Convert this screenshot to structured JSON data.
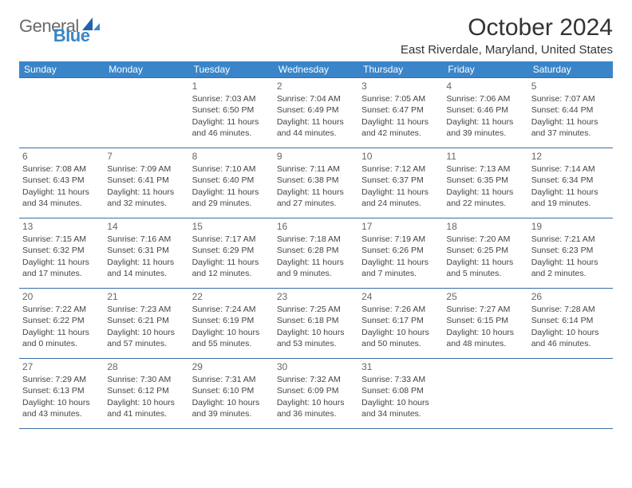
{
  "brand": {
    "general": "General",
    "blue": "Blue"
  },
  "title": "October 2024",
  "location": "East Riverdale, Maryland, United States",
  "colors": {
    "header_bg": "#3a85c9",
    "header_text": "#ffffff",
    "row_border": "#3a6ea5",
    "body_text": "#444444",
    "title_text": "#333333",
    "logo_gray": "#6a6a6a",
    "logo_blue": "#3a85c9"
  },
  "day_headers": [
    "Sunday",
    "Monday",
    "Tuesday",
    "Wednesday",
    "Thursday",
    "Friday",
    "Saturday"
  ],
  "weeks": [
    [
      {
        "day": "",
        "sunrise": "",
        "sunset": "",
        "dl1": "",
        "dl2": ""
      },
      {
        "day": "",
        "sunrise": "",
        "sunset": "",
        "dl1": "",
        "dl2": ""
      },
      {
        "day": "1",
        "sunrise": "Sunrise: 7:03 AM",
        "sunset": "Sunset: 6:50 PM",
        "dl1": "Daylight: 11 hours",
        "dl2": "and 46 minutes."
      },
      {
        "day": "2",
        "sunrise": "Sunrise: 7:04 AM",
        "sunset": "Sunset: 6:49 PM",
        "dl1": "Daylight: 11 hours",
        "dl2": "and 44 minutes."
      },
      {
        "day": "3",
        "sunrise": "Sunrise: 7:05 AM",
        "sunset": "Sunset: 6:47 PM",
        "dl1": "Daylight: 11 hours",
        "dl2": "and 42 minutes."
      },
      {
        "day": "4",
        "sunrise": "Sunrise: 7:06 AM",
        "sunset": "Sunset: 6:46 PM",
        "dl1": "Daylight: 11 hours",
        "dl2": "and 39 minutes."
      },
      {
        "day": "5",
        "sunrise": "Sunrise: 7:07 AM",
        "sunset": "Sunset: 6:44 PM",
        "dl1": "Daylight: 11 hours",
        "dl2": "and 37 minutes."
      }
    ],
    [
      {
        "day": "6",
        "sunrise": "Sunrise: 7:08 AM",
        "sunset": "Sunset: 6:43 PM",
        "dl1": "Daylight: 11 hours",
        "dl2": "and 34 minutes."
      },
      {
        "day": "7",
        "sunrise": "Sunrise: 7:09 AM",
        "sunset": "Sunset: 6:41 PM",
        "dl1": "Daylight: 11 hours",
        "dl2": "and 32 minutes."
      },
      {
        "day": "8",
        "sunrise": "Sunrise: 7:10 AM",
        "sunset": "Sunset: 6:40 PM",
        "dl1": "Daylight: 11 hours",
        "dl2": "and 29 minutes."
      },
      {
        "day": "9",
        "sunrise": "Sunrise: 7:11 AM",
        "sunset": "Sunset: 6:38 PM",
        "dl1": "Daylight: 11 hours",
        "dl2": "and 27 minutes."
      },
      {
        "day": "10",
        "sunrise": "Sunrise: 7:12 AM",
        "sunset": "Sunset: 6:37 PM",
        "dl1": "Daylight: 11 hours",
        "dl2": "and 24 minutes."
      },
      {
        "day": "11",
        "sunrise": "Sunrise: 7:13 AM",
        "sunset": "Sunset: 6:35 PM",
        "dl1": "Daylight: 11 hours",
        "dl2": "and 22 minutes."
      },
      {
        "day": "12",
        "sunrise": "Sunrise: 7:14 AM",
        "sunset": "Sunset: 6:34 PM",
        "dl1": "Daylight: 11 hours",
        "dl2": "and 19 minutes."
      }
    ],
    [
      {
        "day": "13",
        "sunrise": "Sunrise: 7:15 AM",
        "sunset": "Sunset: 6:32 PM",
        "dl1": "Daylight: 11 hours",
        "dl2": "and 17 minutes."
      },
      {
        "day": "14",
        "sunrise": "Sunrise: 7:16 AM",
        "sunset": "Sunset: 6:31 PM",
        "dl1": "Daylight: 11 hours",
        "dl2": "and 14 minutes."
      },
      {
        "day": "15",
        "sunrise": "Sunrise: 7:17 AM",
        "sunset": "Sunset: 6:29 PM",
        "dl1": "Daylight: 11 hours",
        "dl2": "and 12 minutes."
      },
      {
        "day": "16",
        "sunrise": "Sunrise: 7:18 AM",
        "sunset": "Sunset: 6:28 PM",
        "dl1": "Daylight: 11 hours",
        "dl2": "and 9 minutes."
      },
      {
        "day": "17",
        "sunrise": "Sunrise: 7:19 AM",
        "sunset": "Sunset: 6:26 PM",
        "dl1": "Daylight: 11 hours",
        "dl2": "and 7 minutes."
      },
      {
        "day": "18",
        "sunrise": "Sunrise: 7:20 AM",
        "sunset": "Sunset: 6:25 PM",
        "dl1": "Daylight: 11 hours",
        "dl2": "and 5 minutes."
      },
      {
        "day": "19",
        "sunrise": "Sunrise: 7:21 AM",
        "sunset": "Sunset: 6:23 PM",
        "dl1": "Daylight: 11 hours",
        "dl2": "and 2 minutes."
      }
    ],
    [
      {
        "day": "20",
        "sunrise": "Sunrise: 7:22 AM",
        "sunset": "Sunset: 6:22 PM",
        "dl1": "Daylight: 11 hours",
        "dl2": "and 0 minutes."
      },
      {
        "day": "21",
        "sunrise": "Sunrise: 7:23 AM",
        "sunset": "Sunset: 6:21 PM",
        "dl1": "Daylight: 10 hours",
        "dl2": "and 57 minutes."
      },
      {
        "day": "22",
        "sunrise": "Sunrise: 7:24 AM",
        "sunset": "Sunset: 6:19 PM",
        "dl1": "Daylight: 10 hours",
        "dl2": "and 55 minutes."
      },
      {
        "day": "23",
        "sunrise": "Sunrise: 7:25 AM",
        "sunset": "Sunset: 6:18 PM",
        "dl1": "Daylight: 10 hours",
        "dl2": "and 53 minutes."
      },
      {
        "day": "24",
        "sunrise": "Sunrise: 7:26 AM",
        "sunset": "Sunset: 6:17 PM",
        "dl1": "Daylight: 10 hours",
        "dl2": "and 50 minutes."
      },
      {
        "day": "25",
        "sunrise": "Sunrise: 7:27 AM",
        "sunset": "Sunset: 6:15 PM",
        "dl1": "Daylight: 10 hours",
        "dl2": "and 48 minutes."
      },
      {
        "day": "26",
        "sunrise": "Sunrise: 7:28 AM",
        "sunset": "Sunset: 6:14 PM",
        "dl1": "Daylight: 10 hours",
        "dl2": "and 46 minutes."
      }
    ],
    [
      {
        "day": "27",
        "sunrise": "Sunrise: 7:29 AM",
        "sunset": "Sunset: 6:13 PM",
        "dl1": "Daylight: 10 hours",
        "dl2": "and 43 minutes."
      },
      {
        "day": "28",
        "sunrise": "Sunrise: 7:30 AM",
        "sunset": "Sunset: 6:12 PM",
        "dl1": "Daylight: 10 hours",
        "dl2": "and 41 minutes."
      },
      {
        "day": "29",
        "sunrise": "Sunrise: 7:31 AM",
        "sunset": "Sunset: 6:10 PM",
        "dl1": "Daylight: 10 hours",
        "dl2": "and 39 minutes."
      },
      {
        "day": "30",
        "sunrise": "Sunrise: 7:32 AM",
        "sunset": "Sunset: 6:09 PM",
        "dl1": "Daylight: 10 hours",
        "dl2": "and 36 minutes."
      },
      {
        "day": "31",
        "sunrise": "Sunrise: 7:33 AM",
        "sunset": "Sunset: 6:08 PM",
        "dl1": "Daylight: 10 hours",
        "dl2": "and 34 minutes."
      },
      {
        "day": "",
        "sunrise": "",
        "sunset": "",
        "dl1": "",
        "dl2": ""
      },
      {
        "day": "",
        "sunrise": "",
        "sunset": "",
        "dl1": "",
        "dl2": ""
      }
    ]
  ]
}
